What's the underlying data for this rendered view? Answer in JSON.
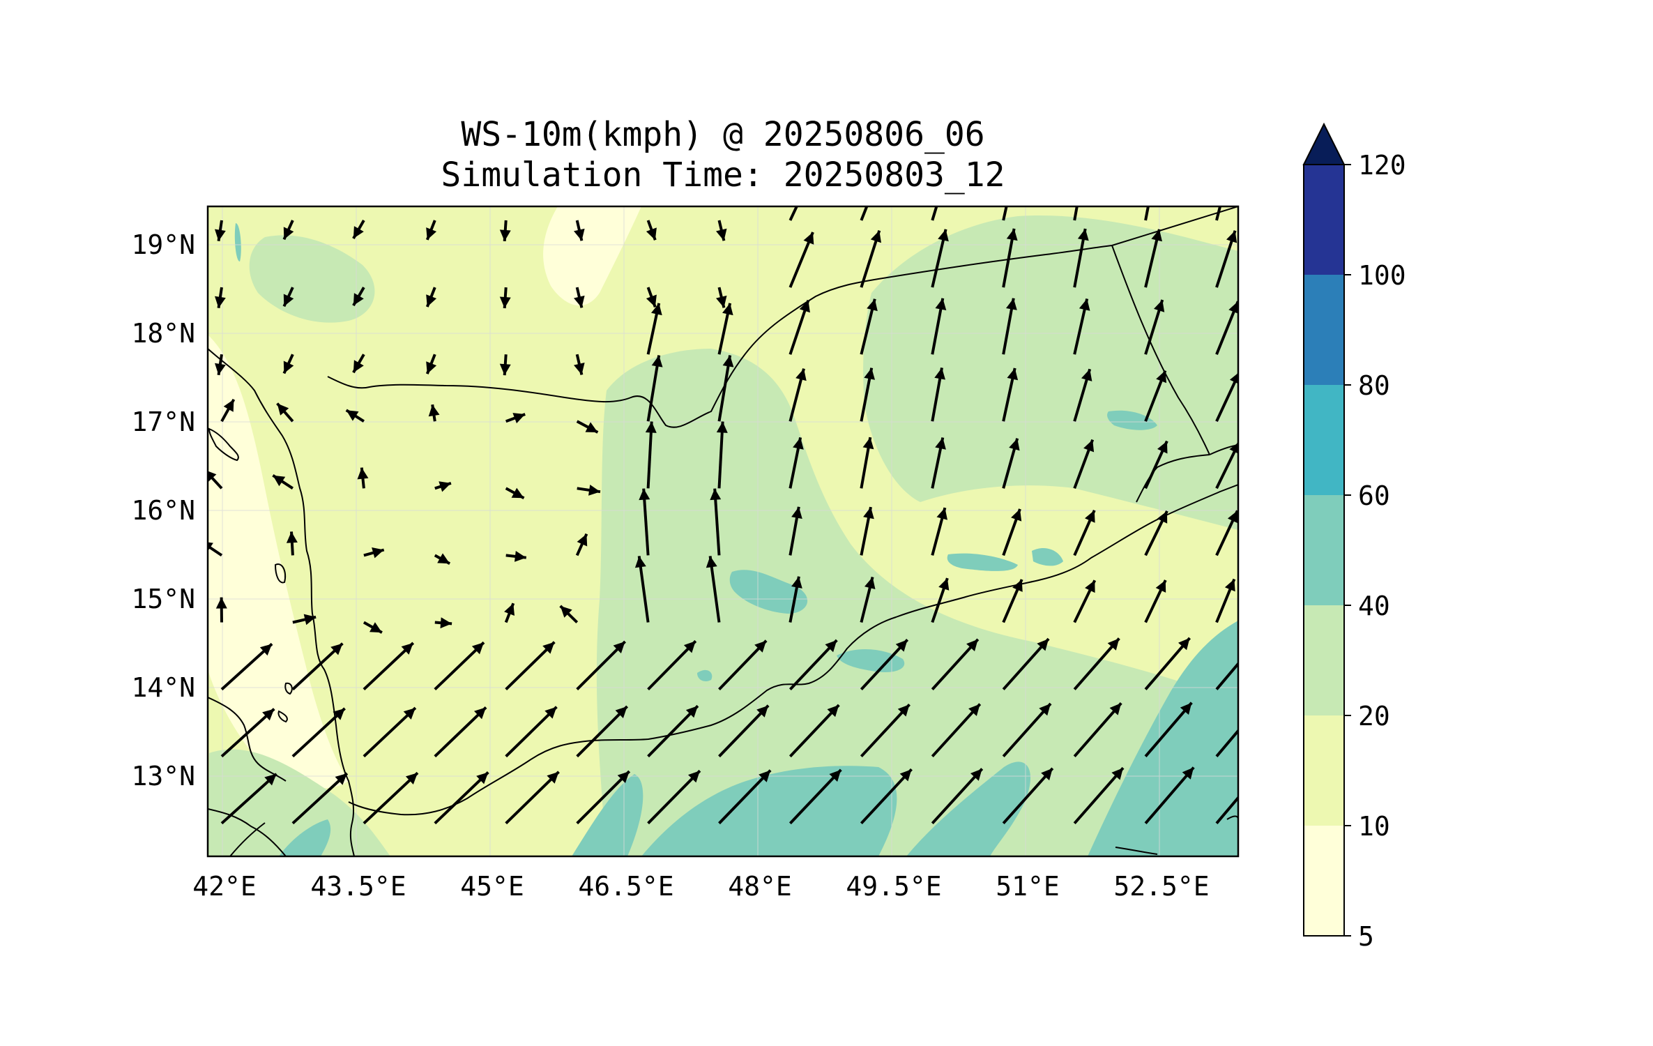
{
  "title": "WS-10m(kmph) @ 20250806_06",
  "subtitle": "Simulation Time: 20250803_12",
  "map": {
    "lon_ticks": [
      "42°E",
      "43.5°E",
      "45°E",
      "46.5°E",
      "48°E",
      "49.5°E",
      "51°E",
      "52.5°E"
    ],
    "lat_ticks": [
      "19°N",
      "18°N",
      "17°N",
      "16°N",
      "15°N",
      "14°N",
      "13°N"
    ],
    "lon_range": [
      41.8,
      53.4
    ],
    "lat_range": [
      12.1,
      19.45
    ]
  },
  "colorbar": {
    "levels": [
      "5",
      "10",
      "20",
      "40",
      "60",
      "80",
      "100",
      "120"
    ],
    "colors": [
      "#ffffd9",
      "#edf8b1",
      "#c7e9b4",
      "#7fcdbb",
      "#41b6c4",
      "#2c7fb8",
      "#253494",
      "#081d58"
    ],
    "extend": "max"
  },
  "colors": {
    "background": "#ffffd9",
    "band_light": "#edf8b1",
    "band_mid": "#c7e9b4",
    "band_high": "#7fcdbb",
    "arrow": "#000000",
    "coast": "#000000"
  }
}
